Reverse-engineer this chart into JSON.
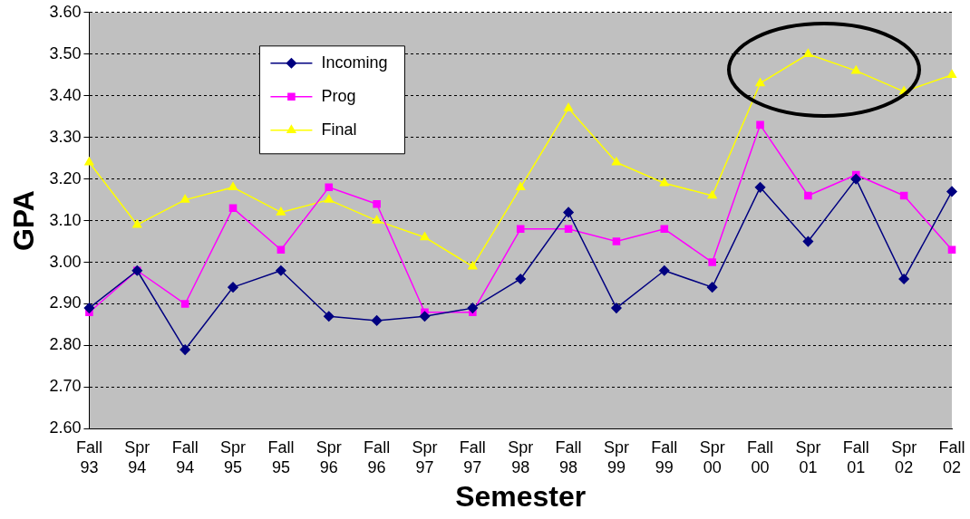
{
  "chart_data": {
    "type": "line",
    "xlabel": "Semester",
    "ylabel": "GPA",
    "categories": [
      "Fall 93",
      "Spr 94",
      "Fall 94",
      "Spr 95",
      "Fall 95",
      "Spr 96",
      "Fall 96",
      "Spr 97",
      "Fall 97",
      "Spr 98",
      "Fall 98",
      "Spr 99",
      "Fall 99",
      "Spr 00",
      "Fall 00",
      "Spr 01",
      "Fall 01",
      "Spr 02",
      "Fall 02"
    ],
    "series": [
      {
        "name": "Incoming",
        "color": "#000080",
        "marker": "diamond",
        "values": [
          2.89,
          2.98,
          2.79,
          2.94,
          2.98,
          2.87,
          2.86,
          2.87,
          2.89,
          2.96,
          3.12,
          2.89,
          2.98,
          2.94,
          3.18,
          3.05,
          3.2,
          2.96,
          3.17
        ]
      },
      {
        "name": "Prog",
        "color": "#ff00ff",
        "marker": "square",
        "values": [
          2.88,
          2.98,
          2.9,
          3.13,
          3.03,
          3.18,
          3.14,
          2.88,
          2.88,
          3.08,
          3.08,
          3.05,
          3.08,
          3.0,
          3.33,
          3.16,
          3.21,
          3.16,
          3.03
        ]
      },
      {
        "name": "Final",
        "color": "#ffff00",
        "marker": "triangle",
        "values": [
          3.24,
          3.09,
          3.15,
          3.18,
          3.12,
          3.15,
          3.1,
          3.06,
          2.99,
          3.18,
          3.37,
          3.24,
          3.19,
          3.16,
          3.43,
          3.5,
          3.46,
          3.41,
          3.45
        ]
      }
    ],
    "ylim": [
      2.6,
      3.6
    ],
    "yticks": [
      {
        "value": 2.6,
        "label": "2.60"
      },
      {
        "value": 2.7,
        "label": "2.70"
      },
      {
        "value": 2.8,
        "label": "2.80"
      },
      {
        "value": 2.9,
        "label": "2.90"
      },
      {
        "value": 3.0,
        "label": "3.00"
      },
      {
        "value": 3.1,
        "label": "3.10"
      },
      {
        "value": 3.2,
        "label": "3.20"
      },
      {
        "value": 3.3,
        "label": "3.30"
      },
      {
        "value": 3.4,
        "label": "3.40"
      },
      {
        "value": 3.5,
        "label": "3.50"
      },
      {
        "value": 3.6,
        "label": "3.60"
      }
    ],
    "grid": "y",
    "legend": "top left",
    "line_style": "solid"
  }
}
